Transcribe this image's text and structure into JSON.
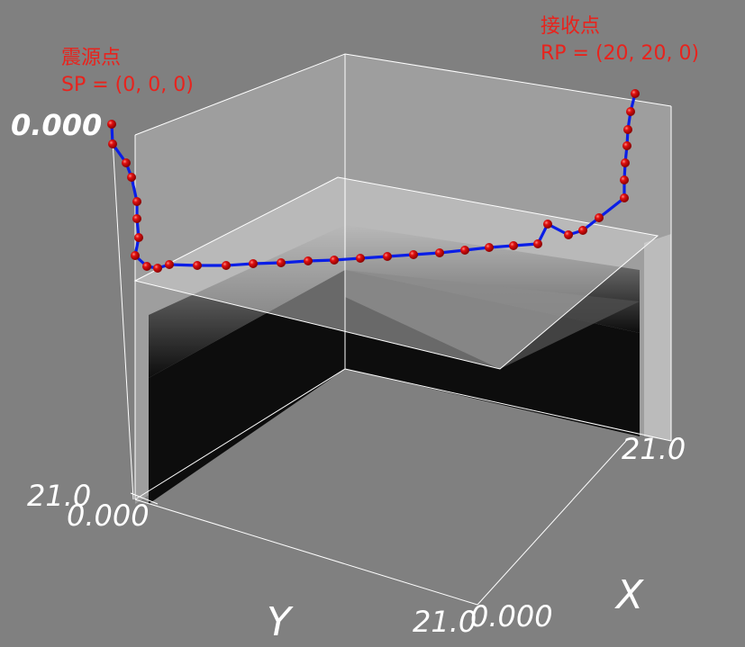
{
  "source_label": {
    "title": "震源点",
    "coords": "SP = (0, 0, 0)"
  },
  "receiver_label": {
    "title": "接收点",
    "coords": "RP = (20, 20, 0)"
  },
  "axes": {
    "z_tick_top": "0.000",
    "z_tick_bottom": "21.0",
    "y_tick_origin": "0.000",
    "y_tick_end": "21.0",
    "x_tick_origin": "0.000",
    "x_tick_end": "21.0",
    "x_label": "X",
    "y_label": "Y"
  },
  "colors": {
    "background": "#808080",
    "path_line": "#0a1ee6",
    "path_nodes": "#e01010",
    "labels": "#e8231d",
    "reflector_low_layer": "#0d0d0d",
    "grid_lines": "#ffffff"
  },
  "chart_data": {
    "type": "3d-ray-path",
    "source_point": [
      0,
      0,
      0
    ],
    "receiver_point": [
      20,
      20,
      0
    ],
    "axis_range": {
      "x": [
        0,
        21
      ],
      "y": [
        0,
        21
      ],
      "z": [
        0,
        21
      ]
    }
  }
}
